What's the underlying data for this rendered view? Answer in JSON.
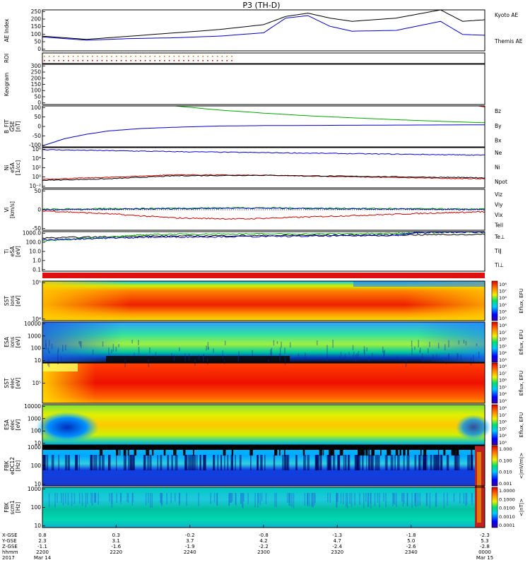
{
  "title": "P3 (TH-D)",
  "panels": [
    {
      "id": "ae",
      "ylabel": [
        "AE Index"
      ],
      "ticks": [
        "0",
        "50",
        "100",
        "150",
        "200",
        "250"
      ],
      "legend": [
        {
          "text": "Kyoto AE",
          "color": "#0000cc"
        },
        {
          "text": "Themis AE",
          "color": "#000000"
        }
      ]
    },
    {
      "id": "roi",
      "ylabel": [
        "ROI"
      ],
      "ticks": [],
      "legend": []
    },
    {
      "id": "keogram",
      "ylabel": [
        "Keogram"
      ],
      "ticks": [
        "0",
        "50",
        "100",
        "150",
        "200",
        "250",
        "300"
      ],
      "legend": []
    },
    {
      "id": "bfield",
      "ylabel": [
        "B_FIT",
        "GSE",
        "[nT]"
      ],
      "ticks": [
        "-100",
        "-50",
        "0",
        "50",
        "100"
      ],
      "legend": [
        {
          "text": "Bz",
          "color": "#cc0000"
        },
        {
          "text": "By",
          "color": "#00aa00"
        },
        {
          "text": "Bx",
          "color": "#0000cc"
        }
      ]
    },
    {
      "id": "density",
      "ylabel": [
        "Ni",
        "eSA",
        "[1/cc]"
      ],
      "ticks": [
        "10⁻²",
        "10⁰",
        "10²",
        "10⁴",
        "10⁶"
      ],
      "legend": [
        {
          "text": "Ne",
          "color": "#cc0000"
        },
        {
          "text": "Ni",
          "color": "#000000"
        },
        {
          "text": "Npot",
          "color": "#0000aa"
        }
      ]
    },
    {
      "id": "velocity",
      "ylabel": [
        "Vi",
        "[km/s]"
      ],
      "ticks": [
        "-50",
        "0",
        "50"
      ],
      "legend": [
        {
          "text": "Viz",
          "color": "#cc0000"
        },
        {
          "text": "Viy",
          "color": "#00aa00"
        },
        {
          "text": "Vix",
          "color": "#0000cc"
        },
        {
          "text": "Tell",
          "color": "#000000"
        }
      ]
    },
    {
      "id": "temp",
      "ylabel": [
        "Ti",
        "eSA",
        "[eV]"
      ],
      "ticks": [
        "0.1",
        "1.0",
        "10.0",
        "100.0",
        "1000.0"
      ],
      "legend": [
        {
          "text": "Te⊥",
          "color": "#cc0000"
        },
        {
          "text": "Ti∥",
          "color": "#00aa00"
        },
        {
          "text": "Ti⊥",
          "color": "#0000cc"
        }
      ]
    },
    {
      "id": "sst_i",
      "ylabel": [
        "SST",
        "ions",
        "[eV]"
      ],
      "ticks": [
        "10⁴",
        "10⁵"
      ],
      "legend": []
    },
    {
      "id": "esa_i",
      "ylabel": [
        "ESA",
        "ions",
        "[eV]"
      ],
      "ticks": [
        "10",
        "100",
        "1000",
        "10000"
      ],
      "legend": []
    },
    {
      "id": "sst_e",
      "ylabel": [
        "SST",
        "elec",
        "[eV]"
      ],
      "ticks": [
        "10⁵"
      ],
      "legend": []
    },
    {
      "id": "esa_e",
      "ylabel": [
        "ESA",
        "elec",
        "[eV]"
      ],
      "ticks": [
        "10",
        "100",
        "1000",
        "10000"
      ],
      "legend": []
    },
    {
      "id": "fbk_e",
      "ylabel": [
        "FBK",
        "eDC12",
        "[Hz]"
      ],
      "ticks": [
        "10",
        "100",
        "1000"
      ],
      "legend": []
    },
    {
      "id": "fbk_b",
      "ylabel": [
        "FBK",
        "scm1",
        "[Hz]"
      ],
      "ticks": [
        "10",
        "100",
        "1000"
      ],
      "legend": []
    }
  ],
  "colorbars": [
    {
      "id": "cb_sst_i",
      "label": "Eflux, EFU",
      "ticks": [
        "10⁸",
        "10⁷",
        "10⁶",
        "10⁵",
        "10⁴",
        "10³"
      ]
    },
    {
      "id": "cb_esa_i",
      "label": "Eflux, EFU",
      "ticks": [
        "10⁸",
        "10⁷",
        "10⁶",
        "10⁵",
        "10⁴",
        "10³"
      ]
    },
    {
      "id": "cb_sst_e",
      "label": "Eflux, EFU",
      "ticks": [
        "10⁸",
        "10⁷",
        "10⁶",
        "10⁵",
        "10⁴",
        "10³"
      ]
    },
    {
      "id": "cb_esa_e",
      "label": "Eflux, EFU",
      "ticks": [
        "10⁸",
        "10⁷",
        "10⁶",
        "10⁵",
        "10⁴",
        "10³"
      ]
    },
    {
      "id": "cb_fbk_e",
      "label": "<|mV/m|>",
      "ticks": [
        "1.000",
        "0.100",
        "0.010",
        "0.001"
      ]
    },
    {
      "id": "cb_fbk_b",
      "label": "<|nT|>",
      "ticks": [
        "1.0000",
        "0.1000",
        "0.0100",
        "0.0010",
        "0.0001"
      ]
    }
  ],
  "xaxis": {
    "row_labels": [
      "X-GSE",
      "Y-GSE",
      "Z-GSE",
      "hhmm",
      "2017"
    ],
    "columns": [
      {
        "x": "0.8",
        "y": "2.3",
        "z": "-1.1",
        "hhmm": "2200",
        "date": "Mar 14"
      },
      {
        "x": "0.3",
        "y": "3.1",
        "z": "-1.6",
        "hhmm": "2220",
        "date": ""
      },
      {
        "x": "-0.2",
        "y": "3.7",
        "z": "-1.9",
        "hhmm": "2240",
        "date": ""
      },
      {
        "x": "-0.8",
        "y": "4.2",
        "z": "-2.2",
        "hhmm": "2300",
        "date": ""
      },
      {
        "x": "-1.3",
        "y": "4.7",
        "z": "-2.4",
        "hhmm": "2320",
        "date": ""
      },
      {
        "x": "-1.8",
        "y": "5.0",
        "z": "-2.6",
        "hhmm": "2340",
        "date": ""
      },
      {
        "x": "-2.3",
        "y": "5.3",
        "z": "-2.8",
        "hhmm": "0000",
        "date": "Mar 15"
      }
    ]
  },
  "chart_data": {
    "type": "line",
    "title": "P3 (TH-D)",
    "x_hours_from_2200": [
      0,
      0.333,
      0.667,
      1.0,
      1.333,
      1.667,
      2.0
    ],
    "xlabel": "hhmm",
    "series": [
      {
        "name": "Kyoto AE",
        "panel": "ae",
        "ylim": [
          0,
          250
        ],
        "x": [
          0,
          0.2,
          0.4,
          0.6,
          0.8,
          1.0,
          1.1,
          1.2,
          1.3,
          1.4,
          1.6,
          1.8,
          1.9,
          2.0
        ],
        "values": [
          90,
          70,
          90,
          110,
          130,
          160,
          210,
          230,
          200,
          180,
          200,
          250,
          180,
          190
        ]
      },
      {
        "name": "Themis AE",
        "panel": "ae",
        "ylim": [
          0,
          250
        ],
        "x": [
          0,
          0.2,
          0.4,
          0.6,
          0.8,
          1.0,
          1.1,
          1.2,
          1.3,
          1.4,
          1.6,
          1.8,
          1.9,
          2.0
        ],
        "values": [
          85,
          65,
          75,
          80,
          90,
          110,
          200,
          215,
          150,
          120,
          125,
          180,
          100,
          95
        ]
      },
      {
        "name": "Bz",
        "panel": "bfield",
        "ylim": [
          -100,
          100
        ],
        "x": [
          1.97,
          2.0
        ],
        "values": [
          100,
          95
        ]
      },
      {
        "name": "By",
        "panel": "bfield",
        "ylim": [
          -100,
          100
        ],
        "x": [
          0.6,
          0.8,
          1.0,
          1.2,
          1.4,
          1.6,
          1.8,
          2.0
        ],
        "values": [
          100,
          80,
          65,
          52,
          42,
          33,
          25,
          18
        ]
      },
      {
        "name": "Bx",
        "panel": "bfield",
        "ylim": [
          -100,
          100
        ],
        "x": [
          0,
          0.1,
          0.2,
          0.3,
          0.45,
          0.6,
          0.8,
          1.0,
          1.5,
          2.0
        ],
        "values": [
          -95,
          -60,
          -38,
          -22,
          -10,
          -4,
          2,
          4,
          6,
          8
        ]
      },
      {
        "name": "Ne",
        "panel": "density",
        "ylim_log": [
          -2,
          6
        ],
        "x": [
          0,
          0.3,
          0.6,
          1.0,
          1.4,
          1.8,
          2.0
        ],
        "values": [
          -0.3,
          0.1,
          0.6,
          0.5,
          0.2,
          -0.1,
          -0.2
        ]
      },
      {
        "name": "Ni",
        "panel": "density",
        "ylim_log": [
          -2,
          6
        ],
        "x": [
          0,
          0.3,
          0.6,
          1.0,
          1.4,
          1.8,
          2.0
        ],
        "values": [
          -0.5,
          -0.2,
          0.4,
          0.5,
          0.3,
          0.1,
          0.0
        ]
      },
      {
        "name": "Npot",
        "panel": "density",
        "ylim_log": [
          -2,
          6
        ],
        "x": [
          0,
          0.3,
          0.6,
          1.0,
          1.4,
          1.8,
          2.0
        ],
        "values": [
          5.6,
          5.4,
          5.2,
          5.0,
          4.8,
          4.6,
          4.5
        ]
      },
      {
        "name": "Viz",
        "panel": "velocity",
        "ylim": [
          -100,
          100
        ],
        "x": [
          0,
          0.3,
          0.6,
          0.9,
          1.2,
          1.5,
          1.8,
          2.0
        ],
        "values": [
          -5,
          -20,
          -40,
          -45,
          -35,
          -25,
          -15,
          -10
        ]
      },
      {
        "name": "Viy",
        "panel": "velocity",
        "ylim": [
          -100,
          100
        ],
        "x": [
          0,
          0.3,
          0.6,
          0.9,
          1.2,
          1.5,
          1.8,
          2.0
        ],
        "values": [
          2,
          5,
          8,
          10,
          8,
          6,
          4,
          3
        ]
      },
      {
        "name": "Vix",
        "panel": "velocity",
        "ylim": [
          -100,
          100
        ],
        "x": [
          0,
          0.3,
          0.6,
          0.9,
          1.2,
          1.5,
          1.8,
          2.0
        ],
        "values": [
          0,
          2,
          5,
          8,
          6,
          4,
          2,
          1
        ]
      },
      {
        "name": "Te⊥",
        "panel": "temp",
        "ylim_log": [
          -1,
          3.3
        ],
        "x": [
          0,
          0.4,
          0.8,
          1.2,
          1.6,
          2.0
        ],
        "values": [
          2.6,
          2.8,
          2.85,
          2.9,
          2.95,
          3.0
        ]
      },
      {
        "name": "Ti∥",
        "panel": "temp",
        "ylim_log": [
          -1,
          3.3
        ],
        "x": [
          0,
          0.3,
          0.5,
          0.8,
          1.2,
          1.6,
          1.7,
          2.0
        ],
        "values": [
          2.3,
          2.7,
          3.0,
          3.05,
          3.05,
          3.1,
          3.2,
          3.25
        ]
      },
      {
        "name": "Ti⊥",
        "panel": "temp",
        "ylim_log": [
          -1,
          3.3
        ],
        "x": [
          0,
          0.3,
          0.5,
          0.8,
          1.2,
          1.6,
          1.7,
          2.0
        ],
        "values": [
          2.4,
          2.6,
          2.7,
          2.75,
          2.8,
          2.9,
          3.2,
          3.25
        ]
      }
    ]
  }
}
